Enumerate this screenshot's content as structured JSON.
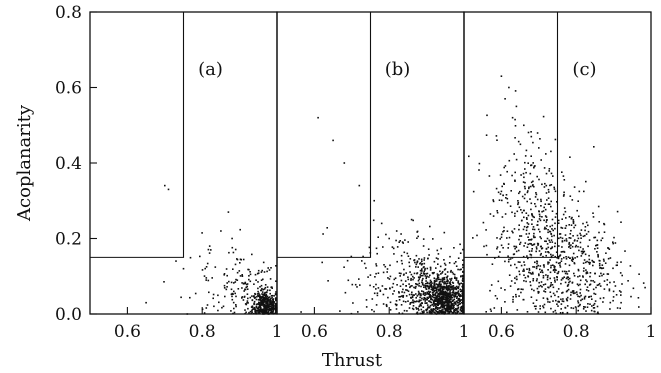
{
  "chart_data": {
    "type": "scatter",
    "xlabel": "Thrust",
    "ylabel": "Acoplanarity",
    "ylim": [
      0.0,
      0.8
    ],
    "yticks": [
      {
        "value": 0.0,
        "label": "0.0"
      },
      {
        "value": 0.2,
        "label": "0.2"
      },
      {
        "value": 0.4,
        "label": "0.4"
      },
      {
        "value": 0.6,
        "label": "0.6"
      },
      {
        "value": 0.8,
        "label": "0.8"
      }
    ],
    "grid": false,
    "panels": [
      {
        "label": "(a)",
        "xlim": [
          0.5,
          1.0
        ],
        "xticks": [
          {
            "value": 0.6,
            "label": "0.6"
          },
          {
            "value": 0.8,
            "label": "0.8"
          },
          {
            "value": 1.0,
            "label": "1"
          }
        ],
        "cut_region": {
          "thrust_max": 0.75,
          "acoplanarity_min": 0.15
        },
        "clusters": [
          {
            "n": 380,
            "cx": 0.97,
            "cy": 0.02,
            "sx": 0.018,
            "sy": 0.022
          },
          {
            "n": 110,
            "cx": 0.92,
            "cy": 0.06,
            "sx": 0.04,
            "sy": 0.04
          },
          {
            "n": 60,
            "cx": 0.86,
            "cy": 0.08,
            "sx": 0.07,
            "sy": 0.06
          }
        ],
        "points": [
          [
            0.7,
            0.34
          ],
          [
            0.71,
            0.33
          ],
          [
            0.85,
            0.22
          ],
          [
            0.87,
            0.27
          ],
          [
            0.73,
            0.14
          ],
          [
            0.75,
            0.12
          ],
          [
            0.65,
            0.03
          ],
          [
            0.82,
            0.18
          ],
          [
            0.88,
            0.2
          ]
        ]
      },
      {
        "label": "(b)",
        "xlim": [
          0.5,
          1.0
        ],
        "xticks": [
          {
            "value": 0.6,
            "label": "0.6"
          },
          {
            "value": 0.8,
            "label": "0.8"
          },
          {
            "value": 1.0,
            "label": "1"
          }
        ],
        "cut_region": {
          "thrust_max": 0.75,
          "acoplanarity_min": 0.15
        },
        "clusters": [
          {
            "n": 700,
            "cx": 0.95,
            "cy": 0.04,
            "sx": 0.03,
            "sy": 0.03
          },
          {
            "n": 320,
            "cx": 0.9,
            "cy": 0.07,
            "sx": 0.055,
            "sy": 0.05
          },
          {
            "n": 160,
            "cx": 0.83,
            "cy": 0.1,
            "sx": 0.08,
            "sy": 0.07
          }
        ],
        "points": [
          [
            0.61,
            0.52
          ],
          [
            0.65,
            0.46
          ],
          [
            0.76,
            0.3
          ],
          [
            0.78,
            0.24
          ],
          [
            0.72,
            0.34
          ],
          [
            0.8,
            0.2
          ],
          [
            0.82,
            0.22
          ],
          [
            0.86,
            0.25
          ],
          [
            0.68,
            0.4
          ]
        ]
      },
      {
        "label": "(c)",
        "xlim": [
          0.5,
          1.0
        ],
        "xticks": [
          {
            "value": 0.6,
            "label": "0.6"
          },
          {
            "value": 0.8,
            "label": "0.8"
          },
          {
            "value": 1.0,
            "label": "1"
          }
        ],
        "cut_region": {
          "thrust_max": 0.75,
          "acoplanarity_min": 0.15
        },
        "clusters": [
          {
            "n": 480,
            "cx": 0.72,
            "cy": 0.17,
            "sx": 0.08,
            "sy": 0.1
          },
          {
            "n": 280,
            "cx": 0.8,
            "cy": 0.1,
            "sx": 0.07,
            "sy": 0.07
          },
          {
            "n": 150,
            "cx": 0.66,
            "cy": 0.32,
            "sx": 0.05,
            "sy": 0.11
          }
        ],
        "points": [
          [
            0.6,
            0.63
          ],
          [
            0.62,
            0.6
          ],
          [
            0.64,
            0.55
          ],
          [
            0.61,
            0.57
          ],
          [
            0.66,
            0.5
          ],
          [
            0.68,
            0.47
          ],
          [
            0.63,
            0.52
          ],
          [
            0.7,
            0.44
          ],
          [
            0.9,
            0.06
          ],
          [
            0.92,
            0.03
          ]
        ]
      }
    ]
  }
}
